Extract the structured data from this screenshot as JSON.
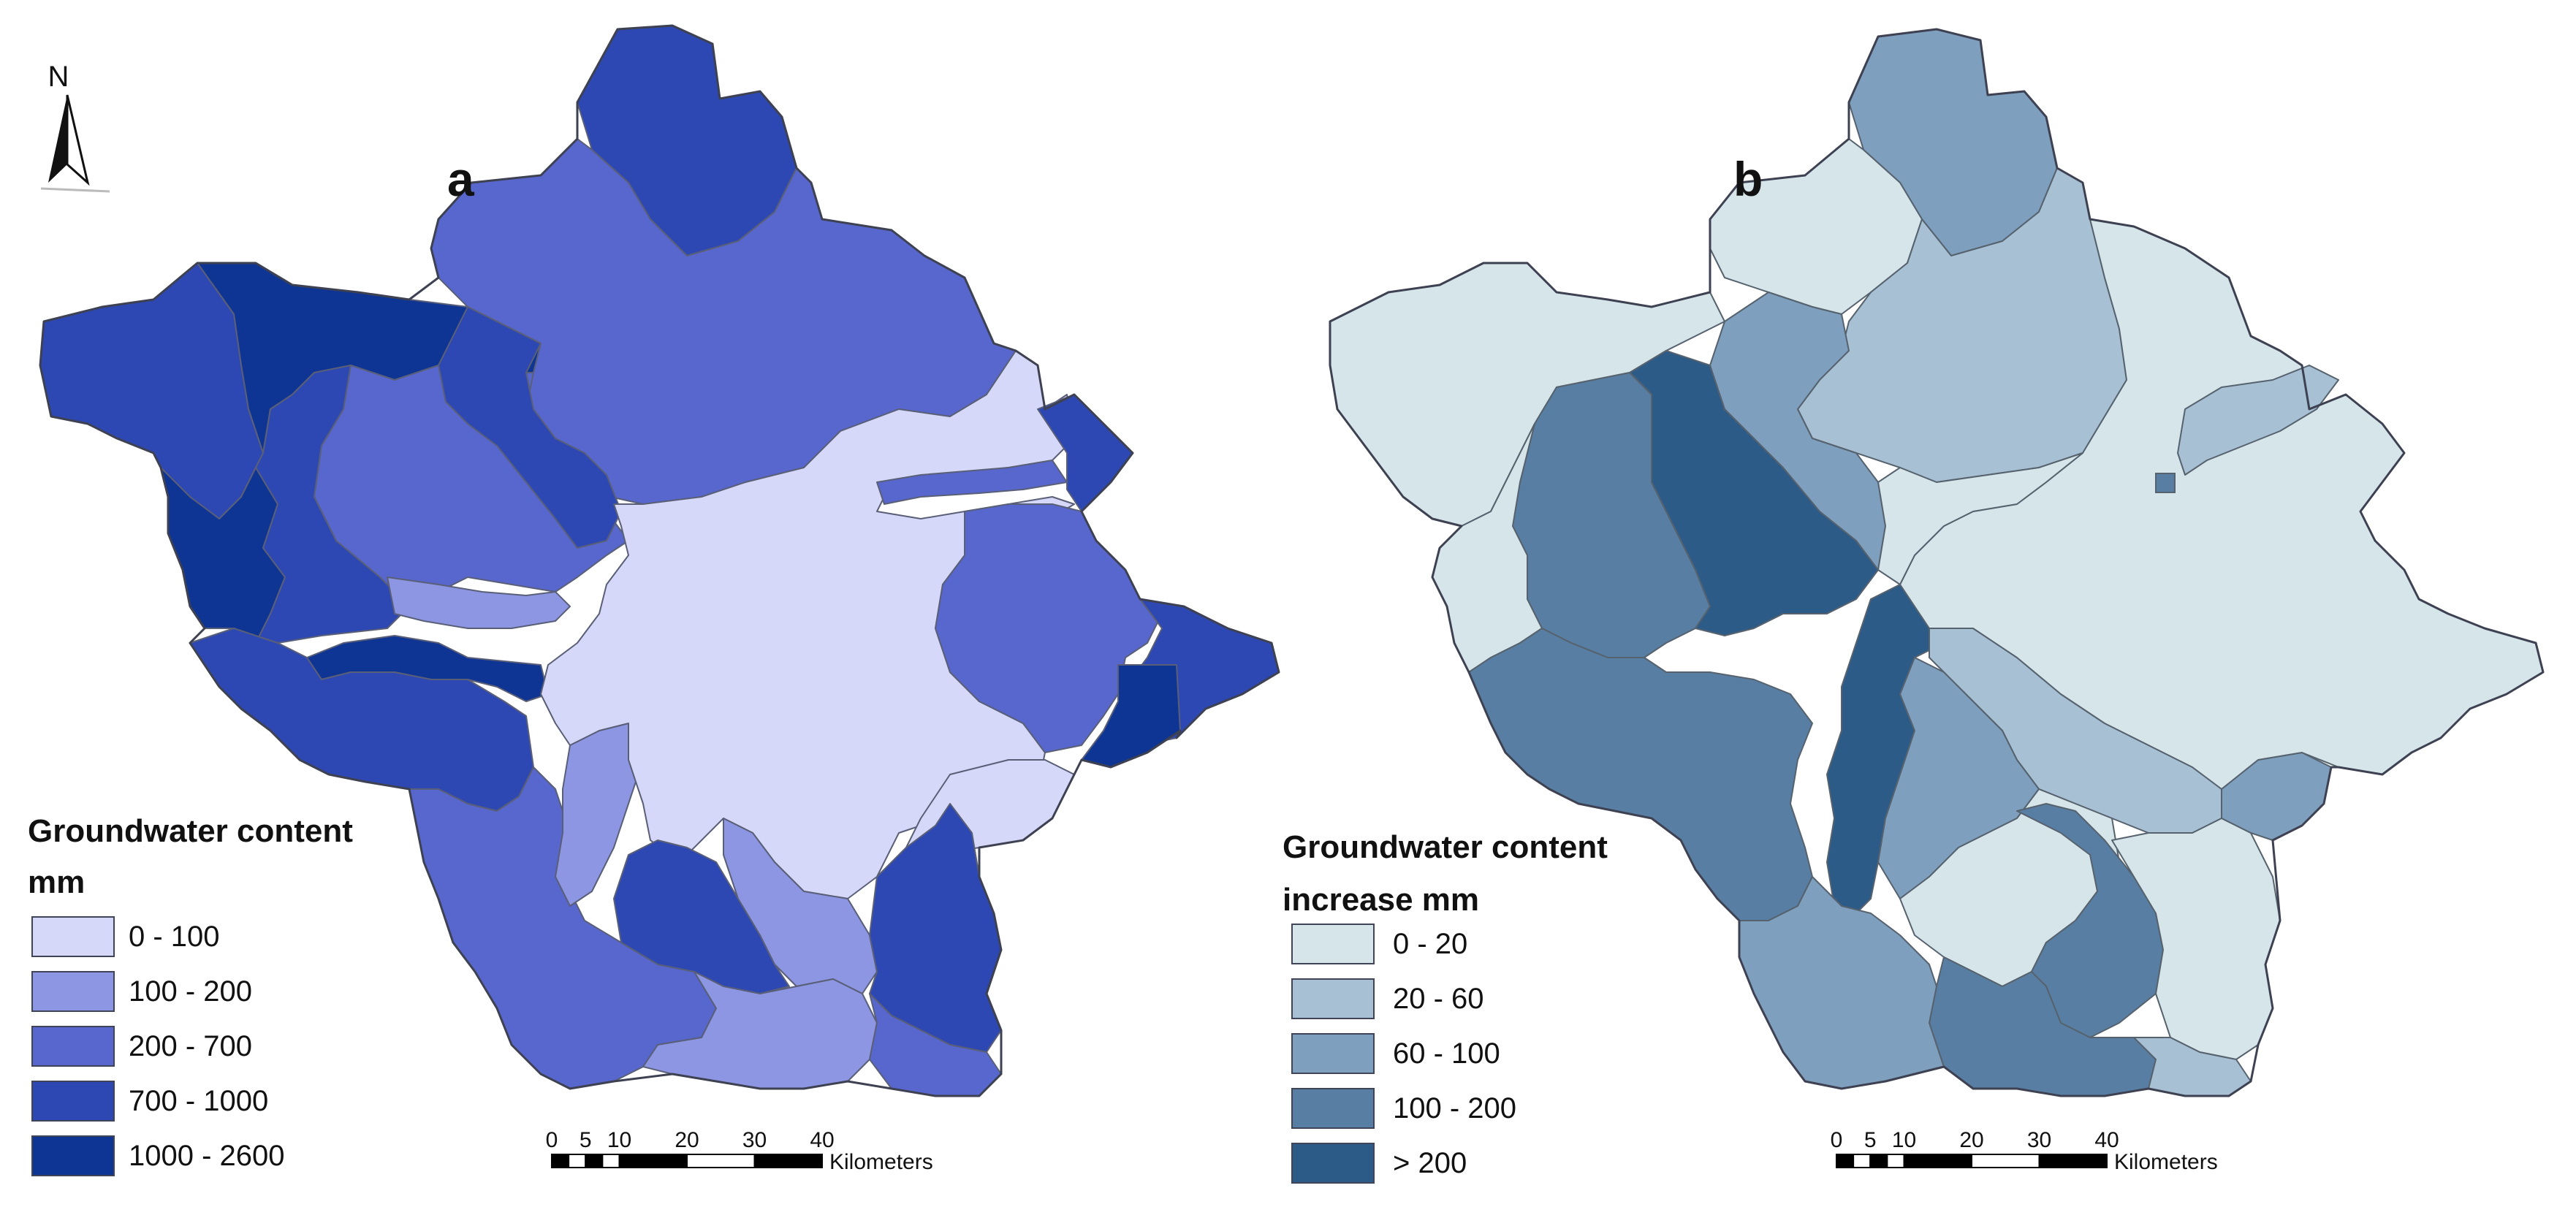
{
  "north_arrow": {
    "label": "N"
  },
  "panels": [
    {
      "letter": "a",
      "legend": {
        "title_line1": "Groundwater content",
        "title_line2": "mm",
        "classes": [
          {
            "label": "0 - 100",
            "color": "#d6d8f9"
          },
          {
            "label": "100 - 200",
            "color": "#8d96e3"
          },
          {
            "label": "200 - 700",
            "color": "#5867ce"
          },
          {
            "label": "700 - 1000",
            "color": "#2d48b3"
          },
          {
            "label": "1000 - 2600",
            "color": "#0e3594"
          }
        ]
      },
      "scale_bar": {
        "ticks": [
          "0",
          "5",
          "10",
          "20",
          "30",
          "40"
        ],
        "unit": "Kilometers"
      }
    },
    {
      "letter": "b",
      "legend": {
        "title_line1": "Groundwater content",
        "title_line2": "increase mm",
        "classes": [
          {
            "label": "0  - 20",
            "color": "#d6e5ea"
          },
          {
            "label": "20 - 60",
            "color": "#a7c0d4"
          },
          {
            "label": "60 - 100",
            "color": "#7e9fbe"
          },
          {
            "label": "100 - 200",
            "color": "#587fa3"
          },
          {
            "label": "> 200",
            "color": "#2d5b88"
          }
        ]
      },
      "scale_bar": {
        "ticks": [
          "0",
          "5",
          "10",
          "20",
          "30",
          "40"
        ],
        "unit": "Kilometers"
      }
    }
  ]
}
